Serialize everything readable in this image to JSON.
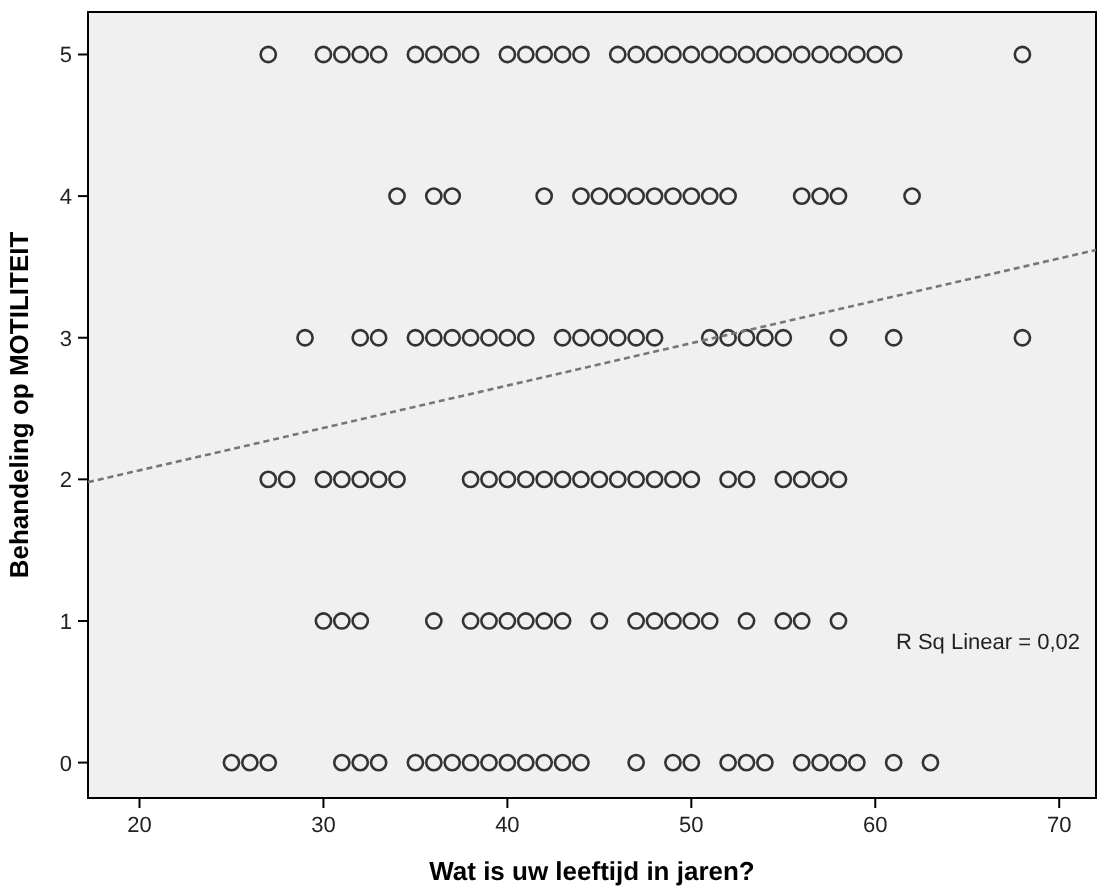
{
  "chart_data": {
    "type": "scatter",
    "xlabel": "Wat is uw leeftijd in jaren?",
    "ylabel": "Behandeling op MOTILITEIT",
    "xlim": [
      17.2,
      72
    ],
    "ylim": [
      -0.25,
      5.3
    ],
    "xticks": [
      20,
      30,
      40,
      50,
      60,
      70
    ],
    "yticks": [
      0,
      1,
      2,
      3,
      4,
      5
    ],
    "grid": false,
    "marker": "circle",
    "annotations": [
      "R Sq Linear = 0,02"
    ],
    "series": [
      {
        "color": "#333333",
        "x": [
          25,
          26,
          27,
          31,
          32,
          33,
          35,
          36,
          37,
          38,
          39,
          40,
          41,
          42,
          43,
          44,
          47,
          49,
          50,
          52,
          53,
          54,
          56,
          57,
          58,
          59,
          61,
          63,
          30,
          31,
          32,
          36,
          38,
          39,
          40,
          41,
          42,
          43,
          45,
          47,
          48,
          49,
          50,
          51,
          53,
          55,
          56,
          58,
          27,
          28,
          30,
          31,
          32,
          33,
          34,
          38,
          39,
          40,
          41,
          42,
          43,
          44,
          45,
          46,
          47,
          48,
          49,
          50,
          52,
          53,
          55,
          56,
          57,
          58,
          29,
          32,
          33,
          35,
          36,
          37,
          38,
          39,
          40,
          41,
          43,
          44,
          45,
          46,
          47,
          48,
          51,
          52,
          53,
          54,
          55,
          58,
          61,
          68,
          34,
          36,
          37,
          42,
          44,
          45,
          46,
          47,
          48,
          49,
          50,
          51,
          52,
          56,
          57,
          58,
          62,
          27,
          30,
          31,
          32,
          33,
          35,
          36,
          37,
          38,
          40,
          41,
          42,
          43,
          44,
          46,
          47,
          48,
          49,
          50,
          51,
          52,
          53,
          54,
          55,
          56,
          57,
          58,
          59,
          60,
          61,
          68
        ],
        "values": [
          0,
          0,
          0,
          0,
          0,
          0,
          0,
          0,
          0,
          0,
          0,
          0,
          0,
          0,
          0,
          0,
          0,
          0,
          0,
          0,
          0,
          0,
          0,
          0,
          0,
          0,
          0,
          0,
          1,
          1,
          1,
          1,
          1,
          1,
          1,
          1,
          1,
          1,
          1,
          1,
          1,
          1,
          1,
          1,
          1,
          1,
          1,
          1,
          2,
          2,
          2,
          2,
          2,
          2,
          2,
          2,
          2,
          2,
          2,
          2,
          2,
          2,
          2,
          2,
          2,
          2,
          2,
          2,
          2,
          2,
          2,
          2,
          2,
          2,
          3,
          3,
          3,
          3,
          3,
          3,
          3,
          3,
          3,
          3,
          3,
          3,
          3,
          3,
          3,
          3,
          3,
          3,
          3,
          3,
          3,
          3,
          3,
          3,
          4,
          4,
          4,
          4,
          4,
          4,
          4,
          4,
          4,
          4,
          4,
          4,
          4,
          4,
          4,
          4,
          4,
          5,
          5,
          5,
          5,
          5,
          5,
          5,
          5,
          5,
          5,
          5,
          5,
          5,
          5,
          5,
          5,
          5,
          5,
          5,
          5,
          5,
          5,
          5,
          5,
          5,
          5,
          5,
          5,
          5,
          5,
          5
        ]
      },
      {
        "type": "line",
        "color": "#777777",
        "line_style": "dashed",
        "marker": "none",
        "x": [
          17.2,
          72
        ],
        "values": [
          1.98,
          3.62
        ]
      }
    ]
  }
}
